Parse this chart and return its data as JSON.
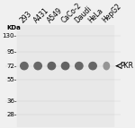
{
  "background_color": "#f0f0f0",
  "gel_color": "#e8e8e8",
  "lane_labels": [
    "293",
    "A431",
    "A549",
    "CaCo-2",
    "Daudi",
    "HeLa",
    "HepG2"
  ],
  "kda_labels": [
    "130-",
    "95-",
    "72-",
    "55-",
    "36-",
    "28-"
  ],
  "kda_values": [
    130,
    95,
    72,
    55,
    36,
    28
  ],
  "band_kda": 72,
  "band_widths": [
    0.55,
    0.55,
    0.55,
    0.55,
    0.55,
    0.55,
    0.42
  ],
  "band_intensities": [
    0.85,
    0.85,
    0.88,
    0.88,
    0.85,
    0.85,
    0.6
  ],
  "kda_label": "KDa",
  "pkr_label": "PKR",
  "title_fontsize": 5.5,
  "tick_fontsize": 5.0,
  "annotation_fontsize": 5.5,
  "fig_width": 1.5,
  "fig_height": 1.43,
  "y_min": 22,
  "y_max": 160
}
